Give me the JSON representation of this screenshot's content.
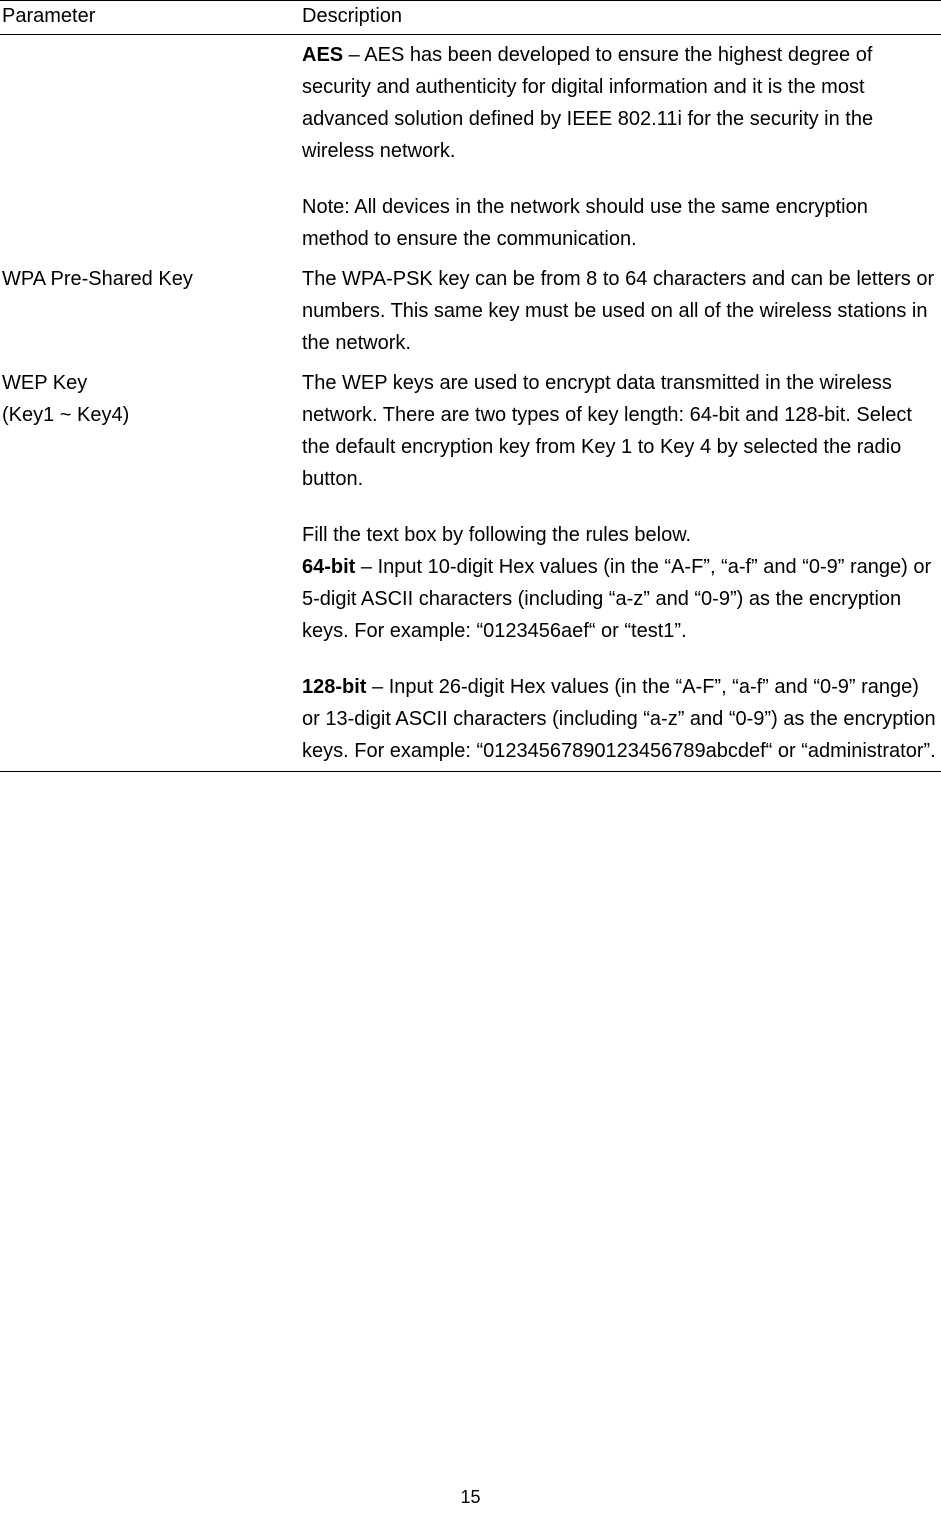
{
  "table": {
    "headers": {
      "parameter": "Parameter",
      "description": "Description"
    },
    "rows": [
      {
        "param": "",
        "desc": {
          "aes_prefix": "AES",
          "aes_body": " – AES has been developed to ensure the highest degree of security and authenticity for digital information and it is the most advanced solution defined by IEEE 802.11i for the security in the wireless network.",
          "note": "Note: All devices in the network should use the same encryption method to ensure the communication."
        }
      },
      {
        "param": "WPA Pre-Shared Key",
        "desc": {
          "text": "The WPA-PSK key can be from 8 to 64 characters and can be letters or numbers. This same key must be used on all of the wireless stations in the network."
        }
      },
      {
        "param_line1": "WEP Key",
        "param_line2": "(Key1 ~ Key4)",
        "desc": {
          "intro": "The WEP keys are used to encrypt data transmitted in the wireless network. There are two types of key length: 64-bit and 128-bit. Select the default encryption key from Key 1 to Key 4 by selected the radio button.",
          "fill": "Fill the text box by following the rules below.",
          "b64_prefix": "64-bit",
          "b64_body": " – Input 10-digit Hex values (in the “A-F”, “a-f” and “0-9” range) or 5-digit ASCII characters (including “a-z” and “0-9”) as the encryption keys. For example: “0123456aef“ or “test1”.",
          "b128_prefix": "128-bit",
          "b128_body": " – Input 26-digit Hex values (in the “A-F”, “a-f” and “0-9” range) or 13-digit ASCII characters (including “a-z” and “0-9”) as the encryption keys. For example: “01234567890123456789abcdef“ or “administrator”."
        }
      }
    ]
  },
  "page_number": "15"
}
